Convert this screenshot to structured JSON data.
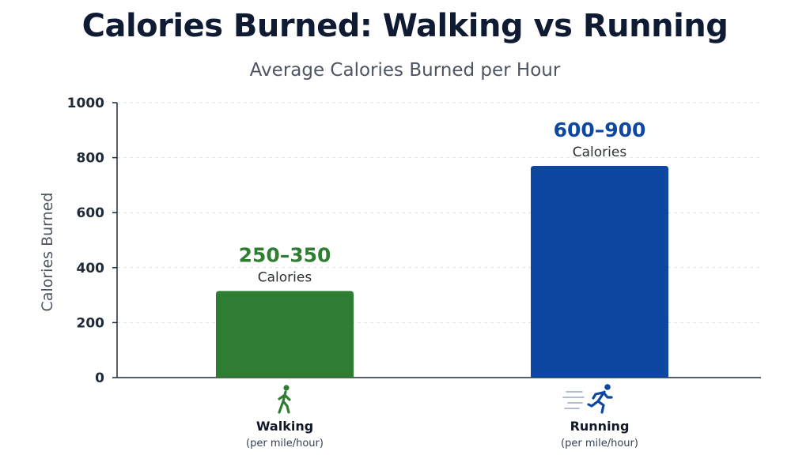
{
  "chart_data": {
    "type": "bar",
    "title": "Calories Burned: Walking vs Running",
    "subtitle": "Average Calories Burned per Hour",
    "xlabel": "",
    "ylabel": "Calories Burned",
    "ylim": [
      0,
      1000
    ],
    "yticks": [
      0,
      200,
      400,
      600,
      800,
      1000
    ],
    "grid": true,
    "categories": [
      {
        "name": "Walking",
        "sub": "(per mile/hour)",
        "value": 315,
        "range_label": "250–350",
        "unit_label": "Calories",
        "color": "#2e7d32",
        "icon": "walking-icon"
      },
      {
        "name": "Running",
        "sub": "(per mile/hour)",
        "value": 770,
        "range_label": "600–900",
        "unit_label": "Calories",
        "color": "#0d47a1",
        "icon": "running-icon"
      }
    ]
  }
}
